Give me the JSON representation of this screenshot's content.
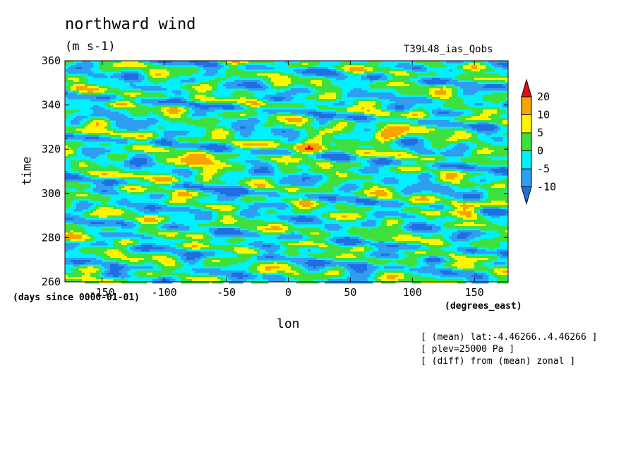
{
  "header": {
    "title": "northward wind",
    "units": "(m s-1)",
    "run_name": "T39L48_ias_Qobs"
  },
  "notes": [
    "[ (mean) lat:-4.46266..4.46266 ]",
    "[ plev=25000 Pa ]",
    "[ (diff) from (mean) zonal ]"
  ],
  "chart_data": {
    "type": "heatmap",
    "title": "northward wind",
    "subtitle": "(m s-1)",
    "xlabel": "lon",
    "ylabel": "time",
    "x_units": "(degrees_east)",
    "y_units": "(days since 0000-01-01)",
    "xlim": [
      -180,
      177.2
    ],
    "ylim": [
      260,
      360
    ],
    "x_ticks": [
      -150,
      -100,
      -50,
      0,
      50,
      100,
      150
    ],
    "x_tick_labels": [
      "-150",
      "-100",
      "-50",
      "0",
      "50",
      "100",
      "150"
    ],
    "y_ticks": [
      260,
      280,
      300,
      320,
      340,
      360
    ],
    "y_tick_labels": [
      "260",
      "280",
      "300",
      "320",
      "340",
      "360"
    ],
    "colorbar": {
      "levels": [
        -10,
        -5,
        0,
        5,
        10,
        20
      ],
      "level_labels": [
        "-10",
        "-5",
        "0",
        "5",
        "10",
        "20"
      ],
      "colors": [
        "#1f6fe0",
        "#2f9df0",
        "#00f0ff",
        "#3ee03e",
        "#fff500",
        "#f5a500",
        "#e01010"
      ],
      "extend": "both"
    },
    "features": [
      {
        "lon": 140,
        "time": 295,
        "value": 20
      },
      {
        "lon": 15,
        "time": 322,
        "value": 20
      },
      {
        "lon": 80,
        "time": 328,
        "value": 20
      },
      {
        "lon": -70,
        "time": 315,
        "value": 20
      },
      {
        "lon": -100,
        "time": 307,
        "value": 10
      },
      {
        "lon": 60,
        "time": 268,
        "value": -10
      },
      {
        "lon": 145,
        "time": 298,
        "value": -10
      },
      {
        "lon": -45,
        "time": 302,
        "value": -10
      }
    ]
  }
}
